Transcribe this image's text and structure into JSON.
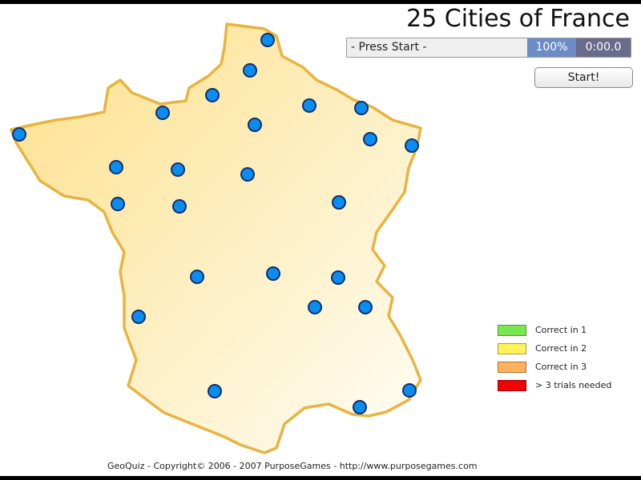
{
  "title": "25 Cities of France",
  "status": {
    "message": "- Press Start -",
    "percent": "100%",
    "timer": "0:00.0"
  },
  "start_button": "Start!",
  "legend": [
    {
      "label": "Correct in 1",
      "color": "#77e84f"
    },
    {
      "label": "Correct in 2",
      "color": "#fff25a"
    },
    {
      "label": "Correct in 3",
      "color": "#ffb25a"
    },
    {
      "label": "> 3 trials needed",
      "color": "#f30000"
    }
  ],
  "footer": "GeoQuiz - Copyright© 2006 - 2007 PurposeGames - http://www.purposegames.com",
  "colors": {
    "city_fill": "#0a8cf0",
    "city_stroke": "#10306a",
    "map_stroke": "#e8b440",
    "map_fill": "#fde9a8"
  },
  "city_count": 25
}
